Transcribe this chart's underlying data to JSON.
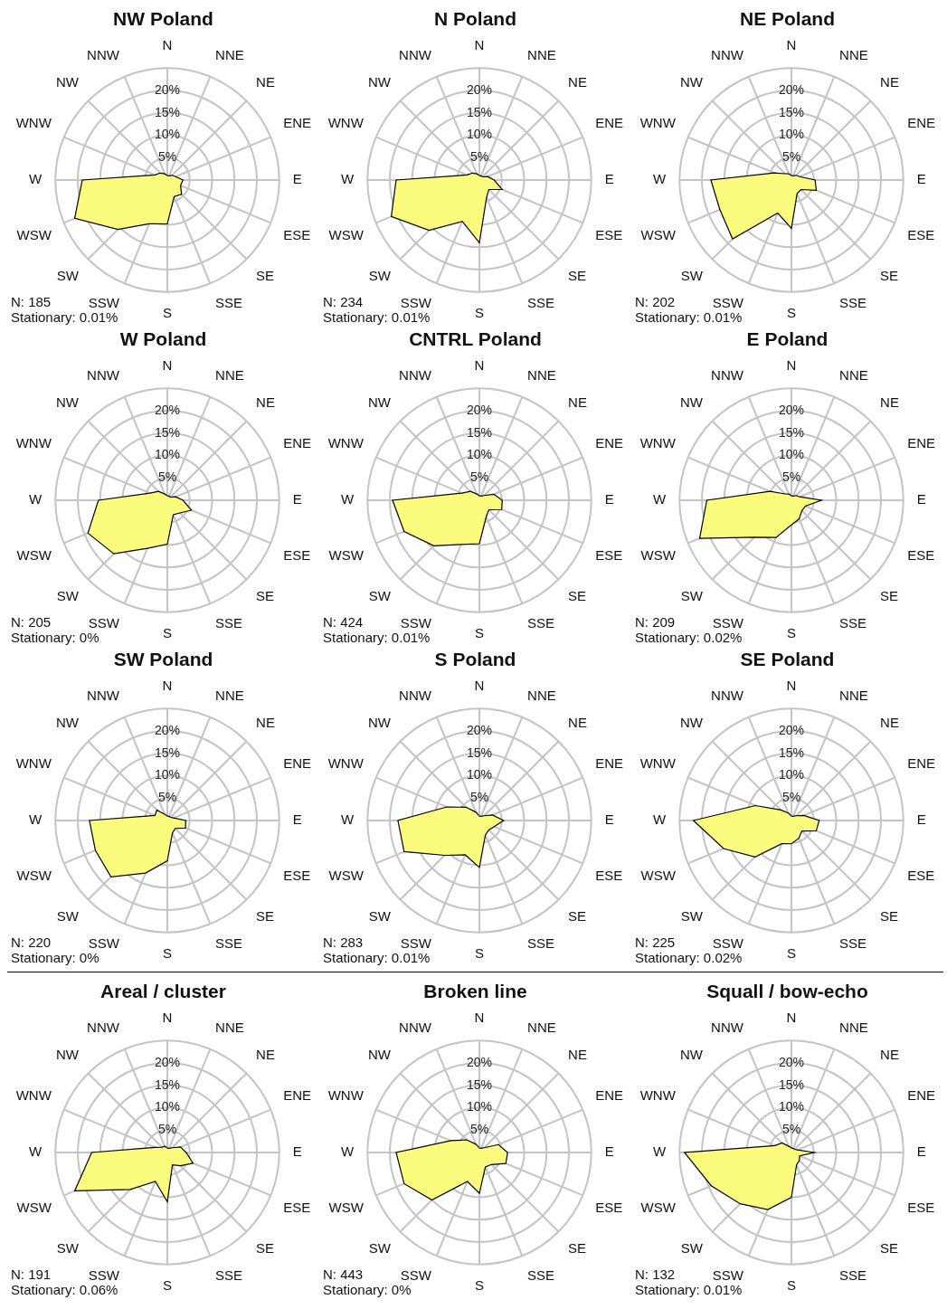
{
  "chart_data": [
    {
      "type": "radar",
      "title": "NW Poland",
      "categories": [
        "N",
        "NNE",
        "NE",
        "ENE",
        "E",
        "ESE",
        "SE",
        "SSE",
        "S",
        "SSW",
        "SW",
        "WSW",
        "W",
        "WNW",
        "NW",
        "NNW"
      ],
      "series": [
        {
          "color": "#fbfb7d",
          "values": [
            1,
            1,
            1.5,
            2,
            3.5,
            3.2,
            4.5,
            4,
            9.8,
            10.6,
            15.6,
            22.4,
            19,
            3,
            2.2,
            1.5
          ]
        }
      ],
      "ylim": [
        0,
        25
      ],
      "yticks": [
        {
          "value": 5,
          "label": "5%"
        },
        {
          "value": 10,
          "label": "10%"
        },
        {
          "value": 15,
          "label": "15%"
        },
        {
          "value": 20,
          "label": "20%"
        }
      ],
      "grid": true,
      "annotations": [
        "N: 185",
        "Stationary: 0.01%"
      ]
    },
    {
      "type": "radar",
      "title": "N Poland",
      "categories": [
        "N",
        "NNE",
        "NE",
        "ENE",
        "E",
        "ESE",
        "SE",
        "SSE",
        "S",
        "SSW",
        "SW",
        "WSW",
        "W",
        "WNW",
        "NW",
        "NNW"
      ],
      "series": [
        {
          "color": "#fbfb7d",
          "values": [
            1,
            1,
            1,
            2,
            3.3,
            5.5,
            3,
            4.2,
            14,
            10,
            15.9,
            21.3,
            18.6,
            3,
            2.2,
            1.5
          ]
        }
      ],
      "ylim": [
        0,
        25
      ],
      "yticks": [
        {
          "value": 5,
          "label": "5%"
        },
        {
          "value": 10,
          "label": "10%"
        },
        {
          "value": 15,
          "label": "15%"
        },
        {
          "value": 20,
          "label": "20%"
        }
      ],
      "grid": true,
      "annotations": [
        "N: 234",
        "Stationary: 0.01%"
      ]
    },
    {
      "type": "radar",
      "title": "NE Poland",
      "categories": [
        "N",
        "NNE",
        "NE",
        "ENE",
        "E",
        "ESE",
        "SE",
        "SSE",
        "S",
        "SSW",
        "SW",
        "WSW",
        "W",
        "WNW",
        "NW",
        "NNW"
      ],
      "series": [
        {
          "color": "#fbfb7d",
          "values": [
            1,
            1,
            1.5,
            2,
            5.3,
            6,
            3,
            3.3,
            10.8,
            8,
            18.6,
            17.3,
            18,
            4.2,
            2,
            1.5
          ]
        }
      ],
      "ylim": [
        0,
        25
      ],
      "yticks": [
        {
          "value": 5,
          "label": "5%"
        },
        {
          "value": 10,
          "label": "10%"
        },
        {
          "value": 15,
          "label": "15%"
        },
        {
          "value": 20,
          "label": "20%"
        }
      ],
      "grid": true,
      "annotations": [
        "N: 202",
        "Stationary: 0.01%"
      ]
    },
    {
      "type": "radar",
      "title": "W Poland",
      "categories": [
        "N",
        "NNE",
        "NE",
        "ENE",
        "E",
        "ESE",
        "SE",
        "SSE",
        "S",
        "SSW",
        "SW",
        "WSW",
        "W",
        "WNW",
        "NW",
        "NNW"
      ],
      "series": [
        {
          "color": "#fbfb7d",
          "values": [
            1,
            1,
            1,
            2,
            3.5,
            5.8,
            4,
            3.5,
            9.8,
            11.6,
            16.9,
            19.2,
            15.4,
            4.2,
            2.8,
            1.5
          ]
        }
      ],
      "ylim": [
        0,
        25
      ],
      "yticks": [
        {
          "value": 5,
          "label": "5%"
        },
        {
          "value": 10,
          "label": "10%"
        },
        {
          "value": 15,
          "label": "15%"
        },
        {
          "value": 20,
          "label": "20%"
        }
      ],
      "grid": true,
      "annotations": [
        "N: 205",
        "Stationary: 0%"
      ]
    },
    {
      "type": "radar",
      "title": "CNTRL Poland",
      "categories": [
        "N",
        "NNE",
        "NE",
        "ENE",
        "E",
        "ESE",
        "SE",
        "SSE",
        "S",
        "SSW",
        "SW",
        "WSW",
        "W",
        "WNW",
        "NW",
        "NNW"
      ],
      "series": [
        {
          "color": "#fbfb7d",
          "values": [
            1,
            1,
            1.5,
            3.5,
            5.1,
            5.4,
            3,
            4,
            9.7,
            10.7,
            14.4,
            18.2,
            19.4,
            4.2,
            2.8,
            1.5
          ]
        }
      ],
      "ylim": [
        0,
        25
      ],
      "yticks": [
        {
          "value": 5,
          "label": "5%"
        },
        {
          "value": 10,
          "label": "10%"
        },
        {
          "value": 15,
          "label": "15%"
        },
        {
          "value": 20,
          "label": "20%"
        }
      ],
      "grid": true,
      "annotations": [
        "N: 424",
        "Stationary: 0.01%"
      ]
    },
    {
      "type": "radar",
      "title": "E Poland",
      "categories": [
        "N",
        "NNE",
        "NE",
        "ENE",
        "E",
        "ESE",
        "SE",
        "SSE",
        "S",
        "SSW",
        "SW",
        "WSW",
        "W",
        "WNW",
        "NW",
        "NNW"
      ],
      "series": [
        {
          "color": "#fbfb7d",
          "values": [
            1,
            1,
            1.5,
            2,
            6.7,
            3.4,
            3.3,
            4.5,
            5.5,
            9,
            11.7,
            22.2,
            18.9,
            5.2,
            2,
            1.5
          ]
        }
      ],
      "ylim": [
        0,
        25
      ],
      "yticks": [
        {
          "value": 5,
          "label": "5%"
        },
        {
          "value": 10,
          "label": "10%"
        },
        {
          "value": 15,
          "label": "15%"
        },
        {
          "value": 20,
          "label": "20%"
        }
      ],
      "grid": true,
      "annotations": [
        "N: 209",
        "Stationary: 0.02%"
      ]
    },
    {
      "type": "radar",
      "title": "SW Poland",
      "categories": [
        "N",
        "NNE",
        "NE",
        "ENE",
        "E",
        "ESE",
        "SE",
        "SSE",
        "S",
        "SSW",
        "SW",
        "WSW",
        "W",
        "WNW",
        "NW",
        "NNW"
      ],
      "series": [
        {
          "color": "#fbfb7d",
          "values": [
            1,
            1,
            1,
            1.5,
            4.1,
            4.4,
            2.5,
            3,
            9,
            12.7,
            17.8,
            17.4,
            17.4,
            3,
            3.3,
            1.5
          ]
        }
      ],
      "ylim": [
        0,
        25
      ],
      "yticks": [
        {
          "value": 5,
          "label": "5%"
        },
        {
          "value": 10,
          "label": "10%"
        },
        {
          "value": 15,
          "label": "15%"
        },
        {
          "value": 20,
          "label": "20%"
        }
      ],
      "grid": true,
      "annotations": [
        "N: 220",
        "Stationary: 0%"
      ]
    },
    {
      "type": "radar",
      "title": "S Poland",
      "categories": [
        "N",
        "NNE",
        "NE",
        "ENE",
        "E",
        "ESE",
        "SE",
        "SSE",
        "S",
        "SSW",
        "SW",
        "WSW",
        "W",
        "WNW",
        "NW",
        "NNW"
      ],
      "series": [
        {
          "color": "#fbfb7d",
          "values": [
            1,
            1,
            1.5,
            3.2,
            5.4,
            3.6,
            3,
            3.5,
            10.5,
            8.3,
            11,
            18.2,
            18.2,
            7.9,
            4.2,
            2
          ]
        }
      ],
      "ylim": [
        0,
        25
      ],
      "yticks": [
        {
          "value": 5,
          "label": "5%"
        },
        {
          "value": 10,
          "label": "10%"
        },
        {
          "value": 15,
          "label": "15%"
        },
        {
          "value": 20,
          "label": "20%"
        }
      ],
      "grid": true,
      "annotations": [
        "N: 283",
        "Stationary: 0.01%"
      ]
    },
    {
      "type": "radar",
      "title": "SE Poland",
      "categories": [
        "N",
        "NNE",
        "NE",
        "ENE",
        "E",
        "ESE",
        "SE",
        "SSE",
        "S",
        "SSW",
        "SW",
        "WSW",
        "W",
        "WNW",
        "NW",
        "NNW"
      ],
      "series": [
        {
          "color": "#fbfb7d",
          "values": [
            1,
            1,
            1.5,
            3,
            6.2,
            6,
            3.3,
            4.3,
            5.2,
            5.6,
            11.5,
            16.4,
            21.9,
            8.7,
            3.3,
            1.8
          ]
        }
      ],
      "ylim": [
        0,
        25
      ],
      "yticks": [
        {
          "value": 5,
          "label": "5%"
        },
        {
          "value": 10,
          "label": "10%"
        },
        {
          "value": 15,
          "label": "15%"
        },
        {
          "value": 20,
          "label": "20%"
        }
      ],
      "grid": true,
      "annotations": [
        "N: 225",
        "Stationary: 0.02%"
      ]
    },
    {
      "type": "radar",
      "title": "Areal / cluster",
      "categories": [
        "N",
        "NNE",
        "NE",
        "ENE",
        "E",
        "ESE",
        "SE",
        "SSE",
        "S",
        "SSW",
        "SW",
        "WSW",
        "W",
        "WNW",
        "NW",
        "NNW"
      ],
      "series": [
        {
          "color": "#fbfb7d",
          "values": [
            1,
            1,
            1.5,
            3.2,
            4.2,
            6.2,
            4.2,
            3,
            11,
            7,
            11.7,
            22.4,
            16.9,
            3,
            1.7,
            1.5
          ]
        }
      ],
      "ylim": [
        0,
        25
      ],
      "yticks": [
        {
          "value": 5,
          "label": "5%"
        },
        {
          "value": 10,
          "label": "10%"
        },
        {
          "value": 15,
          "label": "15%"
        },
        {
          "value": 20,
          "label": "20%"
        }
      ],
      "grid": true,
      "annotations": [
        "N: 191",
        "Stationary: 0.06%"
      ]
    },
    {
      "type": "radar",
      "title": "Broken line",
      "categories": [
        "N",
        "NNE",
        "NE",
        "ENE",
        "E",
        "ESE",
        "SE",
        "SSE",
        "S",
        "SSW",
        "SW",
        "WSW",
        "W",
        "WNW",
        "NW",
        "NNW"
      ],
      "series": [
        {
          "color": "#fbfb7d",
          "values": [
            1,
            1,
            1.5,
            4.6,
            6.3,
            6.4,
            3.8,
            3.5,
            9.1,
            7,
            15,
            18.2,
            18.6,
            6.9,
            4,
            2
          ]
        }
      ],
      "ylim": [
        0,
        25
      ],
      "yticks": [
        {
          "value": 5,
          "label": "5%"
        },
        {
          "value": 10,
          "label": "10%"
        },
        {
          "value": 15,
          "label": "15%"
        },
        {
          "value": 20,
          "label": "20%"
        }
      ],
      "grid": true,
      "annotations": [
        "N: 443",
        "Stationary: 0%"
      ]
    },
    {
      "type": "radar",
      "title": "Squall / bow-echo",
      "categories": [
        "N",
        "NNE",
        "NE",
        "ENE",
        "E",
        "ESE",
        "SE",
        "SSE",
        "S",
        "SSW",
        "SW",
        "WSW",
        "W",
        "WNW",
        "NW",
        "NNW"
      ],
      "series": [
        {
          "color": "#fbfb7d",
          "values": [
            1,
            1,
            1,
            1.5,
            5.1,
            2,
            2.5,
            3,
            10,
            13.8,
            16.2,
            19.4,
            23.9,
            4,
            3,
            1.5
          ]
        }
      ],
      "ylim": [
        0,
        25
      ],
      "yticks": [
        {
          "value": 5,
          "label": "5%"
        },
        {
          "value": 10,
          "label": "10%"
        },
        {
          "value": 15,
          "label": "15%"
        },
        {
          "value": 20,
          "label": "20%"
        }
      ],
      "grid": true,
      "annotations": [
        "N: 132",
        "Stationary: 0.01%"
      ]
    }
  ]
}
